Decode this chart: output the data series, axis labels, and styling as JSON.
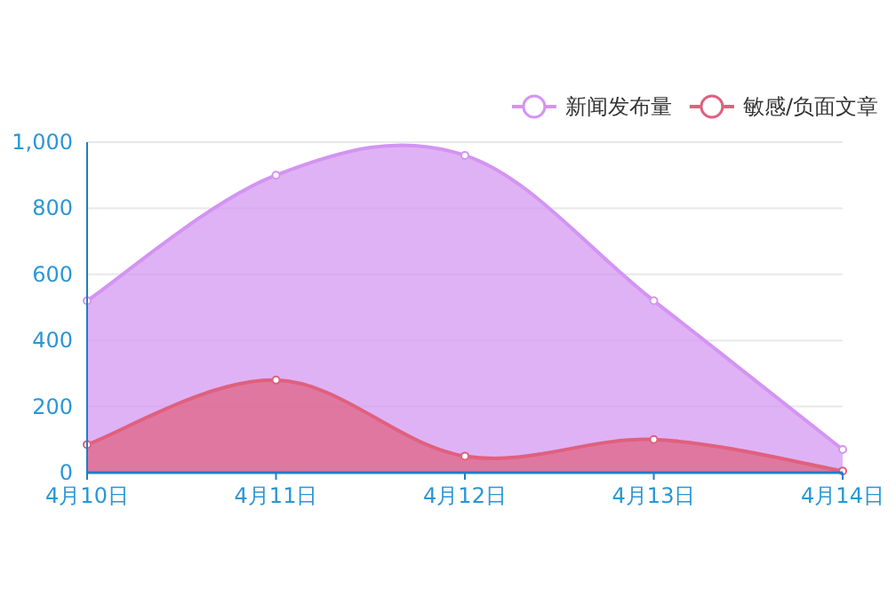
{
  "chart_data": {
    "type": "area",
    "categories": [
      "4月10日",
      "4月11日",
      "4月12日",
      "4月13日",
      "4月14日"
    ],
    "series": [
      {
        "name": "新闻发布量",
        "color": "#d394f2",
        "values": [
          520,
          900,
          960,
          520,
          70
        ]
      },
      {
        "name": "敏感/负面文章",
        "color": "#e0607e",
        "values": [
          85,
          280,
          50,
          100,
          5
        ]
      }
    ],
    "ylim": [
      0,
      1000
    ],
    "yticks": [
      0,
      200,
      400,
      600,
      800,
      {
        "value": 1000,
        "label": "1,000"
      }
    ],
    "grid": "y",
    "legend": "top right",
    "marker": "circle"
  }
}
